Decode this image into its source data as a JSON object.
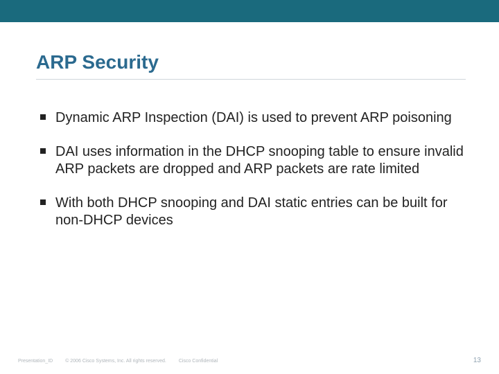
{
  "colors": {
    "top_bar": "#1a6a7d",
    "title": "#2b6a8f",
    "underline": "#cfd6db",
    "body_text": "#222222",
    "footer_text": "#b0b6bb",
    "page_number": "#8fa2b0",
    "background": "#ffffff"
  },
  "title": "ARP Security",
  "bullets": [
    "Dynamic ARP Inspection (DAI) is used to prevent ARP poisoning",
    "DAI uses information in the DHCP snooping table to ensure invalid ARP packets are dropped and ARP packets are rate limited",
    "With both DHCP snooping and DAI static entries can be built for non-DHCP devices"
  ],
  "footer": {
    "presentation_id": "Presentation_ID",
    "copyright": "© 2006 Cisco Systems, Inc. All rights reserved.",
    "confidential": "Cisco Confidential",
    "page_number": "13"
  }
}
